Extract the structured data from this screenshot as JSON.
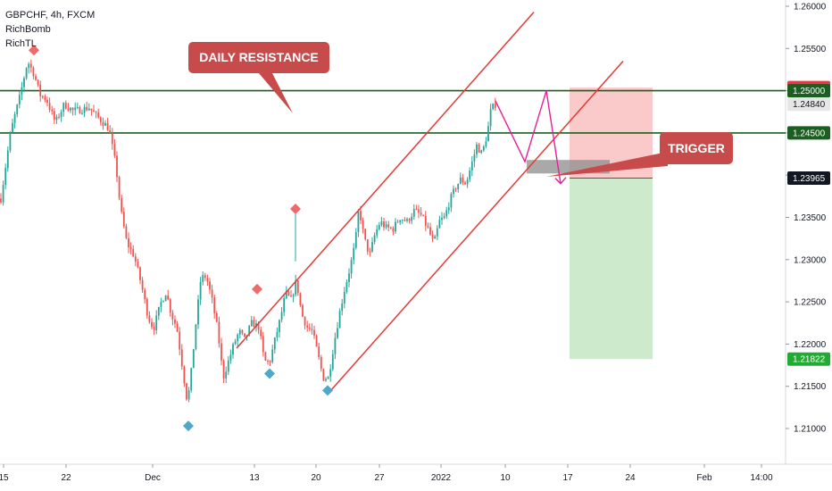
{
  "legend": {
    "symbol_line": "GBPCHF, 4h, FXCM",
    "indicator_1": "RichBomb",
    "indicator_2": "RichTL"
  },
  "colors": {
    "bull": "#26a69a",
    "bear": "#ef5350",
    "channel": "#e53935",
    "level": "#1b5e20",
    "projection": "#e91e9b",
    "sell_marker": "#ef6b6b",
    "buy_marker": "#4fa8c9",
    "stop_zone": "#f9c3c3",
    "target_zone": "#c8e8c8",
    "callout": "#c84b4b"
  },
  "chart_data": {
    "type": "candlestick",
    "symbol": "GBPCHF",
    "timeframe": "4h",
    "source": "FXCM",
    "ylim": [
      1.205,
      1.261
    ],
    "y_ticks": [
      "1.26000",
      "1.25500",
      "1.25000",
      "1.24500",
      "1.24000",
      "1.23500",
      "1.23000",
      "1.22500",
      "1.22000",
      "1.21500",
      "1.21000"
    ],
    "x_ticks": [
      "15",
      "22",
      "Dec",
      "13",
      "20",
      "27",
      "2022",
      "10",
      "17",
      "24",
      "Feb",
      "14:00"
    ],
    "horizontal_levels": [
      1.25,
      1.245
    ],
    "price_badges": [
      {
        "label": "1.25037",
        "value": 1.25037,
        "bg": "#f23645",
        "fg": "#ffffff"
      },
      {
        "label": "1.25000",
        "value": 1.25,
        "bg": "#1b5e20",
        "fg": "#ffffff"
      },
      {
        "label": "1.24840",
        "value": 1.2484,
        "bg": "#e6e6e6",
        "fg": "#131722"
      },
      {
        "label": "1.24500",
        "value": 1.245,
        "bg": "#1b5e20",
        "fg": "#ffffff"
      },
      {
        "label": "1.23965",
        "value": 1.23965,
        "bg": "#131722",
        "fg": "#ffffff"
      },
      {
        "label": "1.21822",
        "value": 1.21822,
        "bg": "#22ab32",
        "fg": "#ffffff"
      }
    ],
    "path_points": [
      [
        0,
        1.2365
      ],
      [
        12,
        1.2452
      ],
      [
        22,
        1.2492
      ],
      [
        31,
        1.2535
      ],
      [
        38,
        1.252
      ],
      [
        45,
        1.2495
      ],
      [
        52,
        1.249
      ],
      [
        62,
        1.2462
      ],
      [
        72,
        1.2484
      ],
      [
        82,
        1.2476
      ],
      [
        92,
        1.2478
      ],
      [
        100,
        1.248
      ],
      [
        108,
        1.247
      ],
      [
        116,
        1.2462
      ],
      [
        122,
        1.2455
      ],
      [
        130,
        1.241
      ],
      [
        135,
        1.236
      ],
      [
        142,
        1.232
      ],
      [
        150,
        1.2305
      ],
      [
        158,
        1.2272
      ],
      [
        166,
        1.2232
      ],
      [
        172,
        1.2218
      ],
      [
        180,
        1.2248
      ],
      [
        186,
        1.2262
      ],
      [
        192,
        1.2235
      ],
      [
        198,
        1.222
      ],
      [
        204,
        1.2175
      ],
      [
        210,
        1.213
      ],
      [
        214,
        1.2165
      ],
      [
        219,
        1.222
      ],
      [
        225,
        1.2278
      ],
      [
        231,
        1.228
      ],
      [
        238,
        1.225
      ],
      [
        244,
        1.2215
      ],
      [
        250,
        1.216
      ],
      [
        256,
        1.218
      ],
      [
        262,
        1.22
      ],
      [
        268,
        1.2215
      ],
      [
        274,
        1.2205
      ],
      [
        282,
        1.2225
      ],
      [
        290,
        1.222
      ],
      [
        296,
        1.218
      ],
      [
        302,
        1.2178
      ],
      [
        308,
        1.2205
      ],
      [
        314,
        1.223
      ],
      [
        320,
        1.226
      ],
      [
        326,
        1.2252
      ],
      [
        332,
        1.2275
      ],
      [
        338,
        1.2235
      ],
      [
        344,
        1.222
      ],
      [
        350,
        1.2215
      ],
      [
        356,
        1.2188
      ],
      [
        362,
        1.216
      ],
      [
        368,
        1.216
      ],
      [
        374,
        1.22
      ],
      [
        380,
        1.2235
      ],
      [
        386,
        1.2265
      ],
      [
        392,
        1.229
      ],
      [
        398,
        1.232
      ],
      [
        402,
        1.2362
      ],
      [
        408,
        1.2325
      ],
      [
        414,
        1.2305
      ],
      [
        420,
        1.233
      ],
      [
        426,
        1.2345
      ],
      [
        432,
        1.2338
      ],
      [
        440,
        1.2336
      ],
      [
        448,
        1.235
      ],
      [
        456,
        1.2345
      ],
      [
        464,
        1.2358
      ],
      [
        472,
        1.2352
      ],
      [
        480,
        1.2335
      ],
      [
        486,
        1.2318
      ],
      [
        492,
        1.2345
      ],
      [
        498,
        1.235
      ],
      [
        504,
        1.237
      ],
      [
        510,
        1.2385
      ],
      [
        516,
        1.2395
      ],
      [
        522,
        1.239
      ],
      [
        528,
        1.2412
      ],
      [
        534,
        1.2435
      ],
      [
        540,
        1.2425
      ],
      [
        546,
        1.245
      ],
      [
        550,
        1.2478
      ],
      [
        555,
        1.2484
      ]
    ],
    "channel_upper": [
      [
        265,
        1.2195
      ],
      [
        598,
        1.2593
      ]
    ],
    "channel_lower": [
      [
        368,
        1.2142
      ],
      [
        698,
        1.2535
      ]
    ],
    "markers": [
      {
        "kind": "sell",
        "x": 38,
        "price": 1.2548
      },
      {
        "kind": "sell",
        "x": 288,
        "price": 1.2265
      },
      {
        "kind": "sell",
        "x": 331,
        "price": 1.236
      },
      {
        "kind": "buy",
        "x": 211,
        "price": 1.2103
      },
      {
        "kind": "buy",
        "x": 302,
        "price": 1.2165
      },
      {
        "kind": "buy",
        "x": 367,
        "price": 1.2145
      }
    ],
    "trade": {
      "entry": 1.23965,
      "stop": 1.25037,
      "target": 1.21822,
      "x_start": 638,
      "x_end": 731
    },
    "trigger_box": {
      "x_start": 590,
      "x_end": 683,
      "top": 1.2418,
      "bottom": 1.2402
    },
    "projection_path": [
      [
        555,
        1.2488
      ],
      [
        588,
        1.2416
      ],
      [
        612,
        1.25
      ],
      [
        628,
        1.239
      ]
    ],
    "annotations": [
      {
        "text": "DAILY RESISTANCE",
        "anchor_price": 1.2472,
        "anchor_x": 328
      },
      {
        "text": "TRIGGER",
        "anchor_price": 1.2398,
        "anchor_x": 612
      }
    ]
  }
}
